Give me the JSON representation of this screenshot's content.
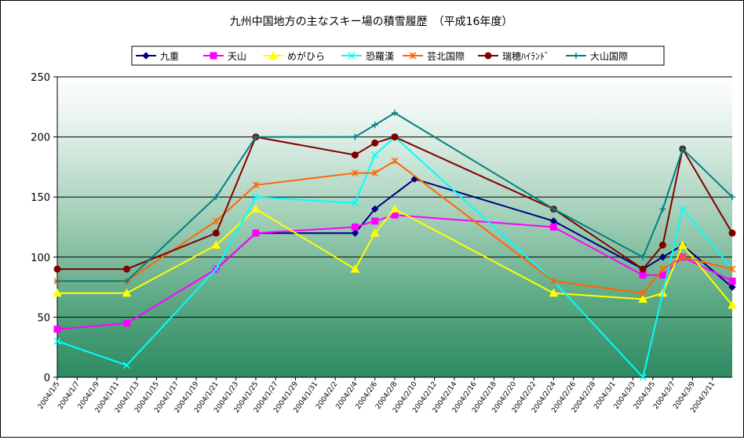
{
  "chart_data": {
    "type": "line",
    "title": "九州中国地方の主なスキー場の積雪履歴　（平成16年度）",
    "ylim": [
      0,
      250
    ],
    "yticks": [
      0,
      50,
      100,
      150,
      200,
      250
    ],
    "grid": true,
    "legend_position": "top",
    "x_range": [
      "2004/1/5",
      "2004/3/13"
    ],
    "x_tick_labels": [
      "2004/1/5",
      "2004/1/7",
      "2004/1/9",
      "2004/1/11",
      "2004/1/13",
      "2004/1/15",
      "2004/1/17",
      "2004/1/19",
      "2004/1/21",
      "2004/1/23",
      "2004/1/25",
      "2004/1/27",
      "2004/1/29",
      "2004/1/31",
      "2004/2/2",
      "2004/2/4",
      "2004/2/6",
      "2004/2/8",
      "2004/2/10",
      "2004/2/12",
      "2004/2/14",
      "2004/2/16",
      "2004/2/18",
      "2004/2/20",
      "2004/2/22",
      "2004/2/24",
      "2004/2/26",
      "2004/2/28",
      "2004/3/1",
      "2004/3/3",
      "2004/3/5",
      "2004/3/7",
      "2004/3/9",
      "2004/3/11"
    ],
    "series": [
      {
        "name": "九重",
        "color": "#000080",
        "marker": "diamond",
        "x": [
          "2004/1/21",
          "2004/1/25",
          "2004/2/4",
          "2004/2/6",
          "2004/2/10",
          "2004/2/24",
          "2004/3/4",
          "2004/3/6",
          "2004/3/8",
          "2004/3/13"
        ],
        "values": [
          90,
          120,
          120,
          140,
          165,
          130,
          90,
          100,
          110,
          75
        ]
      },
      {
        "name": "天山",
        "color": "#ff00ff",
        "marker": "square",
        "x": [
          "2004/1/5",
          "2004/1/12",
          "2004/1/21",
          "2004/1/25",
          "2004/2/4",
          "2004/2/6",
          "2004/2/8",
          "2004/2/24",
          "2004/3/4",
          "2004/3/6",
          "2004/3/8",
          "2004/3/13"
        ],
        "values": [
          40,
          45,
          90,
          120,
          125,
          130,
          135,
          125,
          85,
          85,
          100,
          80
        ]
      },
      {
        "name": "めがひら",
        "color": "#ffff00",
        "marker": "triangle",
        "x": [
          "2004/1/5",
          "2004/1/12",
          "2004/1/21",
          "2004/1/25",
          "2004/2/4",
          "2004/2/6",
          "2004/2/8",
          "2004/2/24",
          "2004/3/4",
          "2004/3/6",
          "2004/3/8",
          "2004/3/13"
        ],
        "values": [
          70,
          70,
          110,
          140,
          90,
          120,
          140,
          70,
          65,
          70,
          110,
          60
        ]
      },
      {
        "name": "恐羅漢",
        "color": "#00ffff",
        "marker": "x",
        "x": [
          "2004/1/5",
          "2004/1/12",
          "2004/1/21",
          "2004/1/25",
          "2004/2/4",
          "2004/2/6",
          "2004/2/8",
          "2004/2/24",
          "2004/3/4",
          "2004/3/8",
          "2004/3/13"
        ],
        "values": [
          30,
          10,
          90,
          150,
          145,
          185,
          200,
          80,
          0,
          140,
          90
        ]
      },
      {
        "name": "芸北国際",
        "color": "#ff6600",
        "marker": "star",
        "x": [
          "2004/1/5",
          "2004/1/12",
          "2004/1/21",
          "2004/1/25",
          "2004/2/4",
          "2004/2/6",
          "2004/2/8",
          "2004/2/24",
          "2004/3/4",
          "2004/3/6",
          "2004/3/8",
          "2004/3/13"
        ],
        "values": [
          80,
          80,
          130,
          160,
          170,
          170,
          180,
          80,
          70,
          90,
          100,
          90
        ]
      },
      {
        "name": "瑞穂ﾊｲﾗﾝﾄﾞ",
        "color": "#800000",
        "marker": "circle",
        "x": [
          "2004/1/5",
          "2004/1/12",
          "2004/1/21",
          "2004/1/25",
          "2004/2/4",
          "2004/2/6",
          "2004/2/8",
          "2004/2/24",
          "2004/3/4",
          "2004/3/6",
          "2004/3/8",
          "2004/3/13"
        ],
        "values": [
          90,
          90,
          120,
          200,
          185,
          195,
          200,
          140,
          90,
          110,
          190,
          120
        ]
      },
      {
        "name": "大山国際",
        "color": "#008080",
        "marker": "plus",
        "x": [
          "2004/1/5",
          "2004/1/12",
          "2004/1/21",
          "2004/1/25",
          "2004/2/4",
          "2004/2/6",
          "2004/2/8",
          "2004/2/24",
          "2004/3/4",
          "2004/3/6",
          "2004/3/8",
          "2004/3/13"
        ],
        "values": [
          80,
          80,
          150,
          200,
          200,
          210,
          220,
          140,
          100,
          140,
          190,
          150
        ]
      }
    ]
  }
}
